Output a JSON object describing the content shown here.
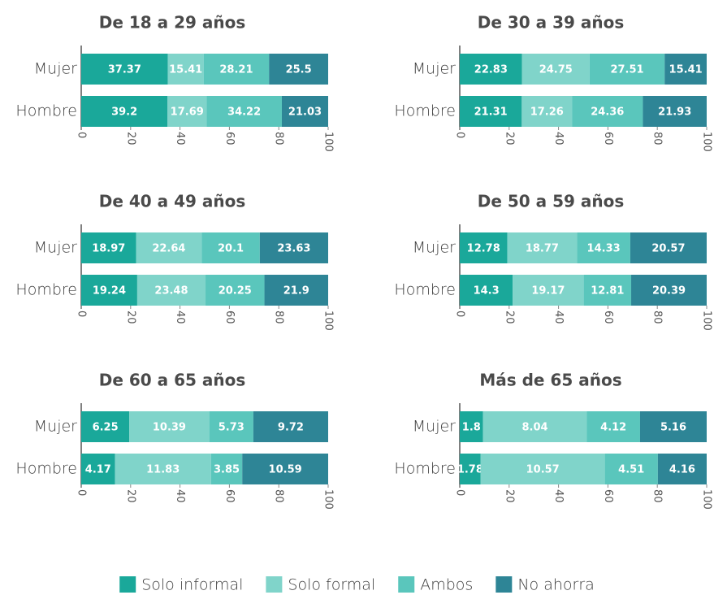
{
  "chart_data": [
    {
      "type": "bar",
      "stack": "percent",
      "title": "De 18 a 29 años",
      "categories": [
        "Mujer",
        "Hombre"
      ],
      "xlim": [
        0,
        100
      ],
      "xticks": [
        0,
        20,
        40,
        60,
        80,
        100
      ],
      "series": [
        {
          "name": "Solo informal",
          "color": "#1aa89a",
          "values": [
            37.37,
            39.2
          ]
        },
        {
          "name": "Solo formal",
          "color": "#80d4ca",
          "values": [
            15.41,
            17.69
          ]
        },
        {
          "name": "Ambos",
          "color": "#5ac6bc",
          "values": [
            28.21,
            34.22
          ]
        },
        {
          "name": "No ahorra",
          "color": "#2e8596",
          "values": [
            25.5,
            21.03
          ]
        }
      ]
    },
    {
      "type": "bar",
      "stack": "percent",
      "title": "De 30 a 39 años",
      "categories": [
        "Mujer",
        "Hombre"
      ],
      "xlim": [
        0,
        100
      ],
      "xticks": [
        0,
        20,
        40,
        60,
        80,
        100
      ],
      "series": [
        {
          "name": "Solo informal",
          "color": "#1aa89a",
          "values": [
            22.83,
            21.31
          ]
        },
        {
          "name": "Solo formal",
          "color": "#80d4ca",
          "values": [
            24.75,
            17.26
          ]
        },
        {
          "name": "Ambos",
          "color": "#5ac6bc",
          "values": [
            27.51,
            24.36
          ]
        },
        {
          "name": "No ahorra",
          "color": "#2e8596",
          "values": [
            15.41,
            21.93
          ]
        }
      ]
    },
    {
      "type": "bar",
      "stack": "percent",
      "title": "De 40 a 49 años",
      "categories": [
        "Mujer",
        "Hombre"
      ],
      "xlim": [
        0,
        100
      ],
      "xticks": [
        0,
        20,
        40,
        60,
        80,
        100
      ],
      "series": [
        {
          "name": "Solo informal",
          "color": "#1aa89a",
          "values": [
            18.97,
            19.24
          ]
        },
        {
          "name": "Solo formal",
          "color": "#80d4ca",
          "values": [
            22.64,
            23.48
          ]
        },
        {
          "name": "Ambos",
          "color": "#5ac6bc",
          "values": [
            20.1,
            20.25
          ]
        },
        {
          "name": "No ahorra",
          "color": "#2e8596",
          "values": [
            23.63,
            21.9
          ]
        }
      ]
    },
    {
      "type": "bar",
      "stack": "percent",
      "title": "De 50 a 59 años",
      "categories": [
        "Mujer",
        "Hombre"
      ],
      "xlim": [
        0,
        100
      ],
      "xticks": [
        0,
        20,
        40,
        60,
        80,
        100
      ],
      "series": [
        {
          "name": "Solo informal",
          "color": "#1aa89a",
          "values": [
            12.78,
            14.3
          ]
        },
        {
          "name": "Solo formal",
          "color": "#80d4ca",
          "values": [
            18.77,
            19.17
          ]
        },
        {
          "name": "Ambos",
          "color": "#5ac6bc",
          "values": [
            14.33,
            12.81
          ]
        },
        {
          "name": "No ahorra",
          "color": "#2e8596",
          "values": [
            20.57,
            20.39
          ]
        }
      ]
    },
    {
      "type": "bar",
      "stack": "percent",
      "title": "De 60 a 65 años",
      "categories": [
        "Mujer",
        "Hombre"
      ],
      "xlim": [
        0,
        100
      ],
      "xticks": [
        0,
        20,
        40,
        60,
        80,
        100
      ],
      "series": [
        {
          "name": "Solo informal",
          "color": "#1aa89a",
          "values": [
            6.25,
            4.17
          ]
        },
        {
          "name": "Solo formal",
          "color": "#80d4ca",
          "values": [
            10.39,
            11.83
          ]
        },
        {
          "name": "Ambos",
          "color": "#5ac6bc",
          "values": [
            5.73,
            3.85
          ]
        },
        {
          "name": "No ahorra",
          "color": "#2e8596",
          "values": [
            9.72,
            10.59
          ]
        }
      ]
    },
    {
      "type": "bar",
      "stack": "percent",
      "title": "Más de 65 años",
      "categories": [
        "Mujer",
        "Hombre"
      ],
      "xlim": [
        0,
        100
      ],
      "xticks": [
        0,
        20,
        40,
        60,
        80,
        100
      ],
      "series": [
        {
          "name": "Solo informal",
          "color": "#1aa89a",
          "values": [
            1.8,
            1.78
          ]
        },
        {
          "name": "Solo formal",
          "color": "#80d4ca",
          "values": [
            8.04,
            10.57
          ]
        },
        {
          "name": "Ambos",
          "color": "#5ac6bc",
          "values": [
            4.12,
            4.51
          ]
        },
        {
          "name": "No ahorra",
          "color": "#2e8596",
          "values": [
            5.16,
            4.16
          ]
        }
      ]
    }
  ]
}
